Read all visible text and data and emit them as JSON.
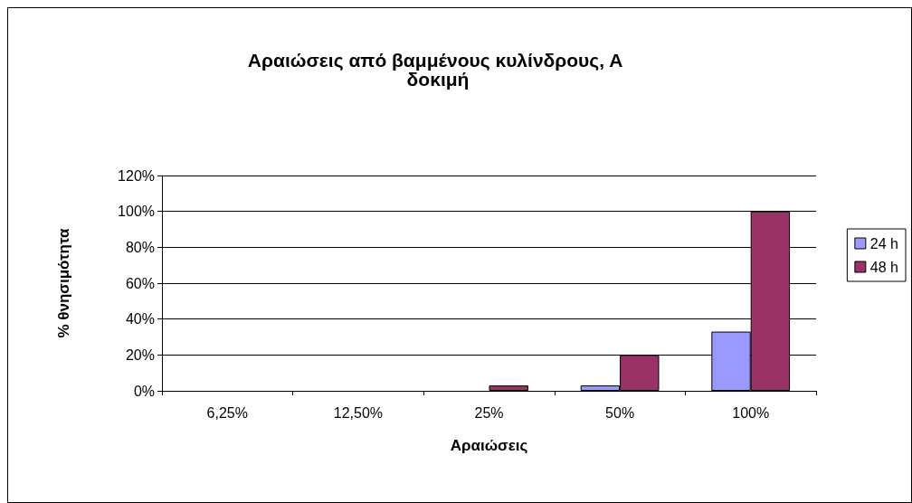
{
  "chart_data": {
    "type": "bar",
    "title": "Αραιώσεις από βαμμένους κυλίνδρους, Α δοκιμή",
    "xlabel": "Αραιώσεις",
    "ylabel": "% θνησιμότητα",
    "categories": [
      "6,25%",
      "12,50%",
      "25%",
      "50%",
      "100%"
    ],
    "series": [
      {
        "name": "24 h",
        "color": "#9999ff",
        "values": [
          0,
          0,
          0,
          3,
          33
        ]
      },
      {
        "name": "48 h",
        "color": "#993366",
        "values": [
          0,
          0,
          3,
          20,
          100
        ]
      }
    ],
    "ylim": [
      0,
      120
    ],
    "yticks": [
      {
        "value": 0,
        "label": "0%"
      },
      {
        "value": 20,
        "label": "20%"
      },
      {
        "value": 40,
        "label": "40%"
      },
      {
        "value": 60,
        "label": "60%"
      },
      {
        "value": 80,
        "label": "80%"
      },
      {
        "value": 100,
        "label": "100%"
      },
      {
        "value": 120,
        "label": "120%"
      }
    ],
    "grid": "y",
    "legend": "right"
  }
}
